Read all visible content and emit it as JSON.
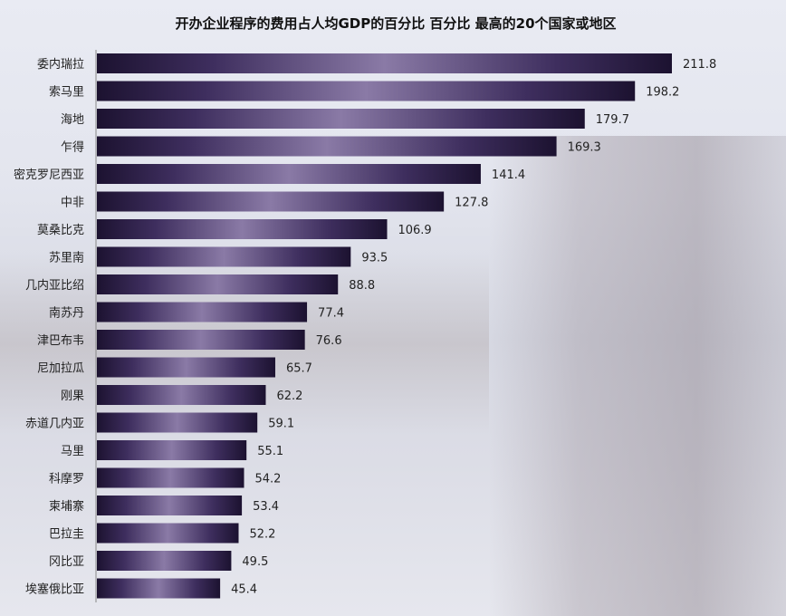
{
  "chart_data": {
    "type": "bar",
    "orientation": "horizontal",
    "title": "开办企业程序的费用占人均GDP的百分比 百分比 最高的20个国家或地区",
    "xlabel": "",
    "ylabel": "",
    "xlim": [
      0,
      230
    ],
    "grid": false,
    "categories": [
      "委内瑞拉",
      "索马里",
      "海地",
      "乍得",
      "密克罗尼西亚",
      "中非",
      "莫桑比克",
      "苏里南",
      "几内亚比绍",
      "南苏丹",
      "津巴布韦",
      "尼加拉瓜",
      "刚果",
      "赤道几内亚",
      "马里",
      "科摩罗",
      "柬埔寨",
      "巴拉圭",
      "冈比亚",
      "埃塞俄比亚"
    ],
    "values": [
      211.8,
      198.2,
      179.7,
      169.3,
      141.4,
      127.8,
      106.9,
      93.5,
      88.8,
      77.4,
      76.6,
      65.7,
      62.2,
      59.1,
      55.1,
      54.2,
      53.4,
      52.2,
      49.5,
      45.4
    ],
    "bar_color": "#2a1d48",
    "bar_highlight_color": "#8a7aa6"
  }
}
